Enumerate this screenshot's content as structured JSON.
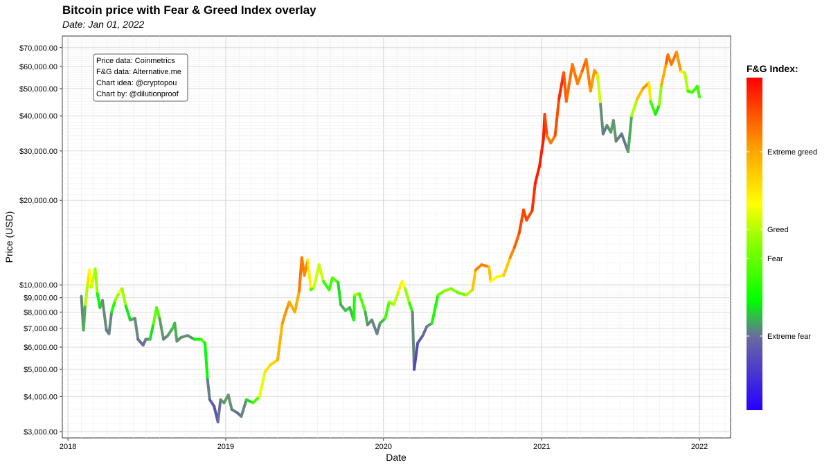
{
  "header": {
    "title": "Bitcoin price with Fear & Greed Index overlay",
    "subtitle": "Date: Jan 01, 2022"
  },
  "credits": [
    "Price data: Coinmetrics",
    "F&G data: Alternative.me",
    "Chart idea: @cryptopou",
    "Chart by: @dilutionproof"
  ],
  "colors": {
    "extreme_fear": "#3a1aff",
    "fear_low": "#00ff00",
    "fear": "#ffff00",
    "greed": "#ffa500",
    "extreme_greed": "#ff0000",
    "grid": "#dddddd",
    "panel_border": "#333333"
  },
  "legend": {
    "title": "F&G Index:",
    "labels": [
      "Extreme greed",
      "Greed",
      "Fear",
      "Extreme fear"
    ]
  },
  "chart_data": {
    "type": "line",
    "title": "Bitcoin price with Fear & Greed Index overlay",
    "subtitle": "Date: Jan 01, 2022",
    "xlabel": "Date",
    "ylabel": "Price (USD)",
    "x_ticks": [
      "2018",
      "2019",
      "2020",
      "2021",
      "2022"
    ],
    "y_ticks": [
      "$3,000.00",
      "$4,000.00",
      "$5,000.00",
      "$6,000.00",
      "$7,000.00",
      "$8,000.00",
      "$9,000.00",
      "$10,000.00",
      "$20,000.00",
      "$30,000.00",
      "$40,000.00",
      "$50,000.00",
      "$60,000.00",
      "$70,000.00"
    ],
    "y_scale": "log",
    "xlim": [
      "2017-12-19",
      "2022-03-14"
    ],
    "ylim": [
      2850,
      77000
    ],
    "grid": true,
    "legend_position": "right",
    "color_variable": "Fear & Greed Index (0-100)",
    "series": [
      {
        "points": [
          [
            "2018-02-01",
            9100,
            30
          ],
          [
            "2018-02-06",
            6900,
            8
          ],
          [
            "2018-02-10",
            8500,
            40
          ],
          [
            "2018-02-16",
            10200,
            55
          ],
          [
            "2018-02-20",
            11300,
            65
          ],
          [
            "2018-02-24",
            9800,
            45
          ],
          [
            "2018-03-05",
            11400,
            55
          ],
          [
            "2018-03-10",
            9300,
            35
          ],
          [
            "2018-03-16",
            8300,
            25
          ],
          [
            "2018-03-22",
            8800,
            25
          ],
          [
            "2018-03-31",
            6900,
            15
          ],
          [
            "2018-04-06",
            6700,
            12
          ],
          [
            "2018-04-12",
            8000,
            25
          ],
          [
            "2018-04-20",
            8800,
            40
          ],
          [
            "2018-04-30",
            9400,
            50
          ],
          [
            "2018-05-06",
            9700,
            55
          ],
          [
            "2018-05-15",
            8400,
            35
          ],
          [
            "2018-05-25",
            7500,
            22
          ],
          [
            "2018-06-05",
            7600,
            25
          ],
          [
            "2018-06-12",
            6400,
            15
          ],
          [
            "2018-06-24",
            6100,
            12
          ],
          [
            "2018-06-30",
            6400,
            18
          ],
          [
            "2018-07-10",
            6400,
            20
          ],
          [
            "2018-07-18",
            7300,
            35
          ],
          [
            "2018-07-25",
            8300,
            45
          ],
          [
            "2018-08-01",
            7600,
            30
          ],
          [
            "2018-08-10",
            6400,
            15
          ],
          [
            "2018-08-20",
            6600,
            20
          ],
          [
            "2018-08-31",
            7000,
            25
          ],
          [
            "2018-09-05",
            7300,
            30
          ],
          [
            "2018-09-10",
            6300,
            18
          ],
          [
            "2018-09-20",
            6500,
            20
          ],
          [
            "2018-10-05",
            6600,
            22
          ],
          [
            "2018-10-20",
            6400,
            20
          ],
          [
            "2018-11-05",
            6400,
            40
          ],
          [
            "2018-11-14",
            6200,
            35
          ],
          [
            "2018-11-20",
            4600,
            25
          ],
          [
            "2018-11-25",
            3900,
            10
          ],
          [
            "2018-12-05",
            3700,
            12
          ],
          [
            "2018-12-14",
            3250,
            8
          ],
          [
            "2018-12-20",
            3900,
            22
          ],
          [
            "2018-12-28",
            3800,
            20
          ],
          [
            "2019-01-07",
            4050,
            25
          ],
          [
            "2019-01-15",
            3600,
            18
          ],
          [
            "2019-01-28",
            3500,
            15
          ],
          [
            "2019-02-06",
            3400,
            12
          ],
          [
            "2019-02-18",
            3900,
            25
          ],
          [
            "2019-03-05",
            3800,
            30
          ],
          [
            "2019-03-20",
            4000,
            45
          ],
          [
            "2019-04-02",
            4900,
            60
          ],
          [
            "2019-04-15",
            5200,
            60
          ],
          [
            "2019-05-01",
            5400,
            65
          ],
          [
            "2019-05-12",
            7300,
            70
          ],
          [
            "2019-05-20",
            8000,
            75
          ],
          [
            "2019-05-28",
            8700,
            72
          ],
          [
            "2019-06-10",
            8000,
            65
          ],
          [
            "2019-06-20",
            9500,
            72
          ],
          [
            "2019-06-26",
            12500,
            85
          ],
          [
            "2019-07-02",
            10800,
            70
          ],
          [
            "2019-07-10",
            12300,
            80
          ],
          [
            "2019-07-17",
            9600,
            35
          ],
          [
            "2019-07-24",
            9800,
            40
          ],
          [
            "2019-08-05",
            11800,
            60
          ],
          [
            "2019-08-15",
            10300,
            40
          ],
          [
            "2019-08-28",
            9600,
            30
          ],
          [
            "2019-09-05",
            10600,
            42
          ],
          [
            "2019-09-18",
            10200,
            35
          ],
          [
            "2019-09-24",
            8500,
            20
          ],
          [
            "2019-10-05",
            8100,
            25
          ],
          [
            "2019-10-15",
            8300,
            28
          ],
          [
            "2019-10-24",
            7500,
            20
          ],
          [
            "2019-10-26",
            9200,
            45
          ],
          [
            "2019-11-06",
            9300,
            45
          ],
          [
            "2019-11-20",
            8000,
            30
          ],
          [
            "2019-11-25",
            7200,
            18
          ],
          [
            "2019-12-05",
            7500,
            22
          ],
          [
            "2019-12-17",
            6700,
            15
          ],
          [
            "2019-12-24",
            7300,
            22
          ],
          [
            "2020-01-05",
            7600,
            28
          ],
          [
            "2020-01-14",
            8700,
            45
          ],
          [
            "2020-01-25",
            8500,
            42
          ],
          [
            "2020-02-05",
            9500,
            55
          ],
          [
            "2020-02-13",
            10300,
            60
          ],
          [
            "2020-02-20",
            9700,
            50
          ],
          [
            "2020-03-01",
            8600,
            40
          ],
          [
            "2020-03-08",
            8000,
            30
          ],
          [
            "2020-03-12",
            5000,
            8
          ],
          [
            "2020-03-20",
            6200,
            10
          ],
          [
            "2020-04-01",
            6600,
            12
          ],
          [
            "2020-04-10",
            7100,
            15
          ],
          [
            "2020-04-22",
            7300,
            25
          ],
          [
            "2020-05-06",
            9200,
            40
          ],
          [
            "2020-05-20",
            9500,
            42
          ],
          [
            "2020-06-05",
            9700,
            45
          ],
          [
            "2020-06-20",
            9400,
            42
          ],
          [
            "2020-07-10",
            9200,
            40
          ],
          [
            "2020-07-25",
            9600,
            55
          ],
          [
            "2020-08-01",
            11300,
            75
          ],
          [
            "2020-08-15",
            11800,
            78
          ],
          [
            "2020-09-01",
            11600,
            75
          ],
          [
            "2020-09-05",
            10300,
            55
          ],
          [
            "2020-09-20",
            10700,
            55
          ],
          [
            "2020-10-05",
            10800,
            58
          ],
          [
            "2020-10-20",
            12500,
            70
          ],
          [
            "2020-10-30",
            13600,
            80
          ],
          [
            "2020-11-10",
            15300,
            85
          ],
          [
            "2020-11-20",
            18500,
            90
          ],
          [
            "2020-11-27",
            17000,
            85
          ],
          [
            "2020-12-10",
            18400,
            88
          ],
          [
            "2020-12-17",
            23000,
            95
          ],
          [
            "2020-12-27",
            26500,
            95
          ],
          [
            "2021-01-05",
            33000,
            95
          ],
          [
            "2021-01-08",
            40500,
            95
          ],
          [
            "2021-01-13",
            34000,
            80
          ],
          [
            "2021-01-22",
            32000,
            75
          ],
          [
            "2021-02-01",
            34000,
            80
          ],
          [
            "2021-02-10",
            46000,
            92
          ],
          [
            "2021-02-21",
            57000,
            93
          ],
          [
            "2021-02-27",
            45000,
            75
          ],
          [
            "2021-03-13",
            61000,
            85
          ],
          [
            "2021-03-25",
            52000,
            72
          ],
          [
            "2021-04-05",
            58000,
            80
          ],
          [
            "2021-04-14",
            63500,
            85
          ],
          [
            "2021-04-24",
            49000,
            70
          ],
          [
            "2021-05-03",
            58000,
            75
          ],
          [
            "2021-05-10",
            56000,
            70
          ],
          [
            "2021-05-17",
            44000,
            30
          ],
          [
            "2021-05-23",
            34500,
            10
          ],
          [
            "2021-06-01",
            37000,
            22
          ],
          [
            "2021-06-10",
            35000,
            18
          ],
          [
            "2021-06-16",
            38500,
            28
          ],
          [
            "2021-06-22",
            32500,
            15
          ],
          [
            "2021-07-05",
            34500,
            20
          ],
          [
            "2021-07-20",
            29800,
            12
          ],
          [
            "2021-07-28",
            40000,
            35
          ],
          [
            "2021-08-10",
            46000,
            60
          ],
          [
            "2021-08-23",
            50000,
            72
          ],
          [
            "2021-09-06",
            52500,
            75
          ],
          [
            "2021-09-10",
            45000,
            42
          ],
          [
            "2021-09-21",
            40500,
            28
          ],
          [
            "2021-09-30",
            43800,
            30
          ],
          [
            "2021-10-05",
            51500,
            58
          ],
          [
            "2021-10-16",
            61500,
            80
          ],
          [
            "2021-10-20",
            66000,
            85
          ],
          [
            "2021-10-28",
            61000,
            72
          ],
          [
            "2021-11-09",
            67500,
            85
          ],
          [
            "2021-11-19",
            57500,
            60
          ],
          [
            "2021-11-28",
            57000,
            55
          ],
          [
            "2021-12-05",
            49000,
            40
          ],
          [
            "2021-12-15",
            48500,
            32
          ],
          [
            "2021-12-27",
            51000,
            40
          ],
          [
            "2022-01-01",
            46700,
            32
          ]
        ]
      }
    ]
  }
}
